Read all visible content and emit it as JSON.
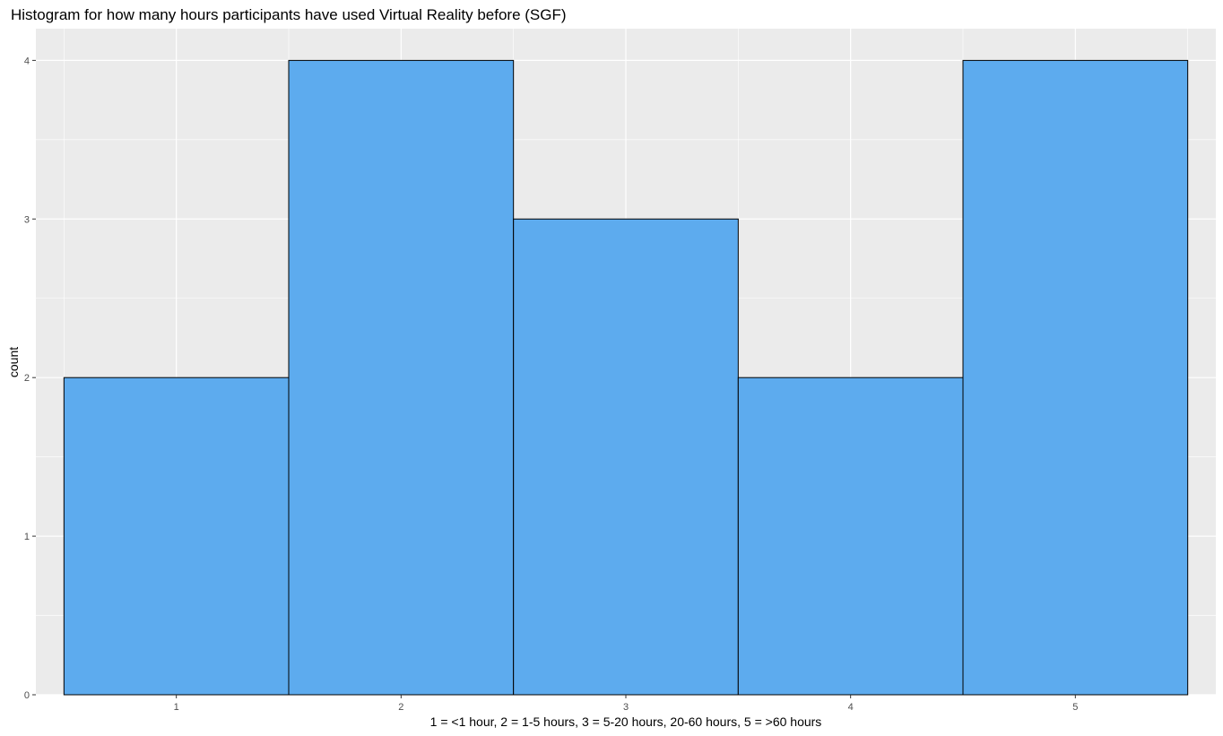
{
  "chart_data": {
    "type": "bar",
    "title": "Histogram for how many hours participants have used Virtual Reality before (SGF)",
    "xlabel": "1 = <1 hour, 2 = 1-5 hours, 3 = 5-20 hours, 20-60 hours,  5 = >60 hours",
    "ylabel": "count",
    "categories": [
      "1",
      "2",
      "3",
      "4",
      "5"
    ],
    "x": [
      1,
      2,
      3,
      4,
      5
    ],
    "values": [
      2,
      4,
      3,
      2,
      4
    ],
    "xlim": [
      0.375,
      5.625
    ],
    "ylim": [
      0,
      4.2
    ],
    "y_ticks": [
      0,
      1,
      2,
      3,
      4
    ],
    "grid": true,
    "colors": {
      "bar_fill": "#5DABEE",
      "bar_stroke": "#000000",
      "panel_background": "#EBEBEB",
      "grid_line": "#FFFFFF"
    }
  }
}
